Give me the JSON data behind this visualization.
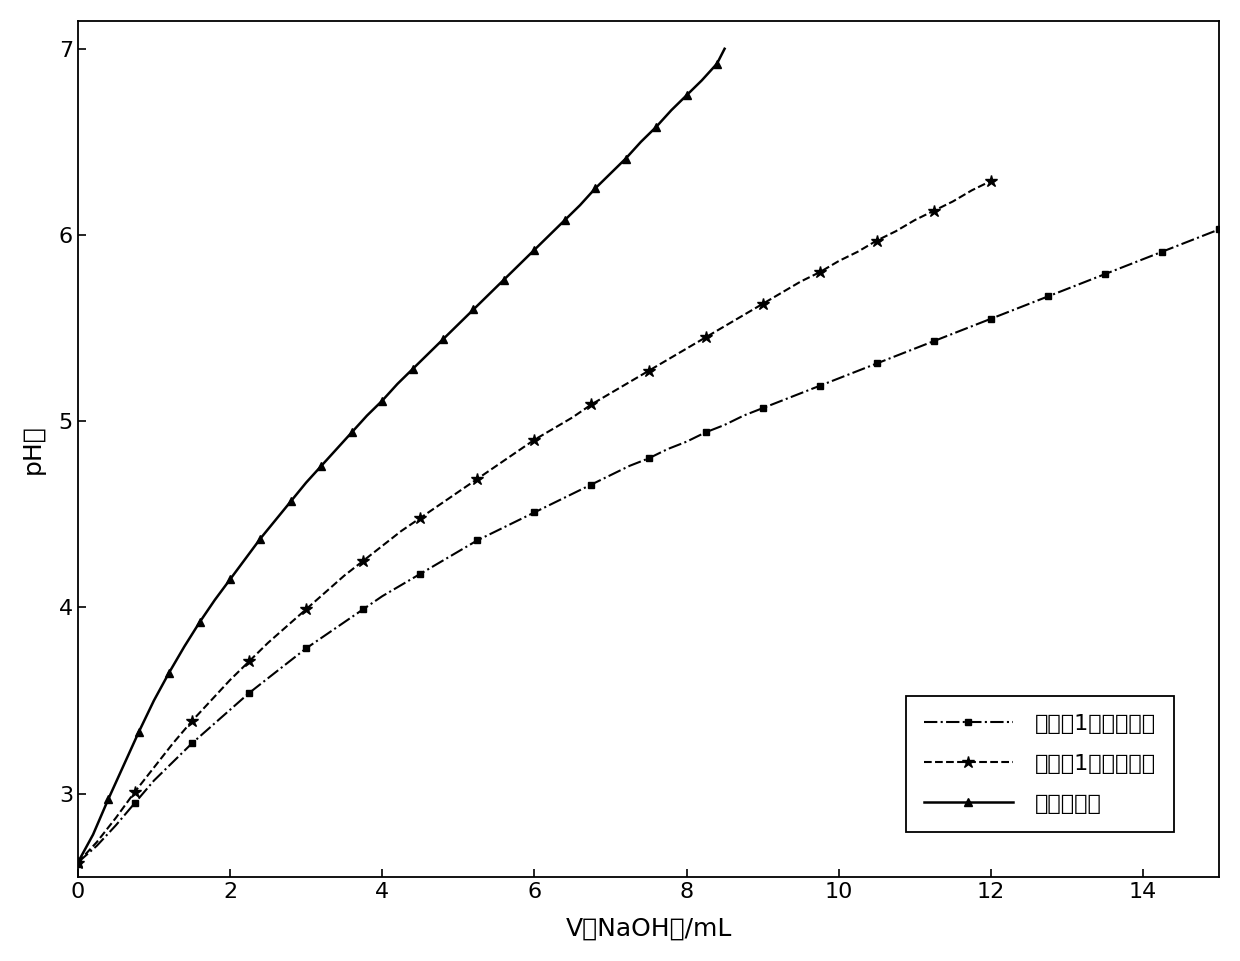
{
  "xlabel": "V（NaOH）/mL",
  "ylabel": "pH値",
  "xlim": [
    0,
    15
  ],
  "ylim": [
    2.55,
    7.15
  ],
  "yticks": [
    3,
    4,
    5,
    6,
    7
  ],
  "xticks": [
    0,
    2,
    4,
    6,
    8,
    10,
    12,
    14
  ],
  "legend_labels": [
    "对比例1制得钓鸣剂",
    "实施例1制得钓鸣剂",
    "硫酸钓溶液"
  ],
  "series1_x": [
    0,
    0.25,
    0.5,
    0.75,
    1.0,
    1.25,
    1.5,
    1.75,
    2.0,
    2.25,
    2.5,
    2.75,
    3.0,
    3.25,
    3.5,
    3.75,
    4.0,
    4.25,
    4.5,
    4.75,
    5.0,
    5.25,
    5.5,
    5.75,
    6.0,
    6.25,
    6.5,
    6.75,
    7.0,
    7.25,
    7.5,
    7.75,
    8.0,
    8.25,
    8.5,
    8.75,
    9.0,
    9.25,
    9.5,
    9.75,
    10.0,
    10.25,
    10.5,
    10.75,
    11.0,
    11.25,
    11.5,
    11.75,
    12.0,
    12.25,
    12.5,
    12.75,
    13.0,
    13.25,
    13.5,
    13.75,
    14.0,
    14.25,
    14.5,
    14.75,
    15.0
  ],
  "series1_y": [
    2.63,
    2.72,
    2.83,
    2.95,
    3.07,
    3.17,
    3.27,
    3.36,
    3.45,
    3.54,
    3.62,
    3.7,
    3.78,
    3.85,
    3.92,
    3.99,
    4.06,
    4.12,
    4.18,
    4.24,
    4.3,
    4.36,
    4.41,
    4.46,
    4.51,
    4.56,
    4.61,
    4.66,
    4.71,
    4.76,
    4.8,
    4.85,
    4.89,
    4.94,
    4.98,
    5.03,
    5.07,
    5.11,
    5.15,
    5.19,
    5.23,
    5.27,
    5.31,
    5.35,
    5.39,
    5.43,
    5.47,
    5.51,
    5.55,
    5.59,
    5.63,
    5.67,
    5.71,
    5.75,
    5.79,
    5.83,
    5.87,
    5.91,
    5.95,
    5.99,
    6.03
  ],
  "series2_x": [
    0,
    0.25,
    0.5,
    0.75,
    1.0,
    1.25,
    1.5,
    1.75,
    2.0,
    2.25,
    2.5,
    2.75,
    3.0,
    3.25,
    3.5,
    3.75,
    4.0,
    4.25,
    4.5,
    4.75,
    5.0,
    5.25,
    5.5,
    5.75,
    6.0,
    6.25,
    6.5,
    6.75,
    7.0,
    7.25,
    7.5,
    7.75,
    8.0,
    8.25,
    8.5,
    8.75,
    9.0,
    9.25,
    9.5,
    9.75,
    10.0,
    10.25,
    10.5,
    10.75,
    11.0,
    11.25,
    11.5,
    11.75,
    12.0
  ],
  "series2_y": [
    2.63,
    2.74,
    2.87,
    3.01,
    3.14,
    3.27,
    3.39,
    3.5,
    3.61,
    3.71,
    3.81,
    3.9,
    3.99,
    4.08,
    4.17,
    4.25,
    4.33,
    4.41,
    4.48,
    4.55,
    4.62,
    4.69,
    4.76,
    4.83,
    4.9,
    4.96,
    5.02,
    5.09,
    5.15,
    5.21,
    5.27,
    5.33,
    5.39,
    5.45,
    5.51,
    5.57,
    5.63,
    5.69,
    5.75,
    5.8,
    5.86,
    5.91,
    5.97,
    6.02,
    6.08,
    6.13,
    6.18,
    6.24,
    6.29
  ],
  "series3_x": [
    0,
    0.2,
    0.4,
    0.6,
    0.8,
    1.0,
    1.2,
    1.4,
    1.6,
    1.8,
    2.0,
    2.2,
    2.4,
    2.6,
    2.8,
    3.0,
    3.2,
    3.4,
    3.6,
    3.8,
    4.0,
    4.2,
    4.4,
    4.6,
    4.8,
    5.0,
    5.2,
    5.4,
    5.6,
    5.8,
    6.0,
    6.2,
    6.4,
    6.6,
    6.8,
    7.0,
    7.2,
    7.4,
    7.6,
    7.8,
    8.0,
    8.2,
    8.4,
    8.5
  ],
  "series3_y": [
    2.63,
    2.78,
    2.97,
    3.15,
    3.33,
    3.5,
    3.65,
    3.79,
    3.92,
    4.04,
    4.15,
    4.26,
    4.37,
    4.47,
    4.57,
    4.67,
    4.76,
    4.85,
    4.94,
    5.03,
    5.11,
    5.2,
    5.28,
    5.36,
    5.44,
    5.52,
    5.6,
    5.68,
    5.76,
    5.84,
    5.92,
    6.0,
    6.08,
    6.16,
    6.25,
    6.33,
    6.41,
    6.5,
    6.58,
    6.67,
    6.75,
    6.83,
    6.92,
    7.0
  ],
  "line_color": "#000000",
  "background_color": "#ffffff",
  "marker_size": 5,
  "font_size": 16,
  "label_font_size": 18
}
